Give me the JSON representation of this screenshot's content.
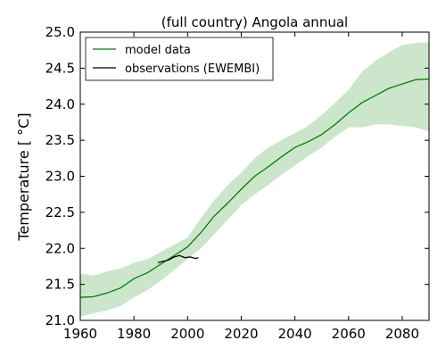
{
  "chart_data": {
    "type": "line",
    "title": "(full country) Angola annual",
    "xlabel": "",
    "ylabel": "Temperature [ °C]",
    "xlim": [
      1960,
      2090
    ],
    "ylim": [
      21.0,
      25.0
    ],
    "x_ticks": [
      1960,
      1980,
      2000,
      2020,
      2040,
      2060,
      2080
    ],
    "y_ticks": [
      21.0,
      21.5,
      22.0,
      22.5,
      23.0,
      23.5,
      24.0,
      24.5,
      25.0
    ],
    "legend_position": "top-left",
    "grid": false,
    "colors": {
      "model": "#008000",
      "band": "#cce6cc",
      "observations": "#000000"
    },
    "series": [
      {
        "name": "model data",
        "x": [
          1960,
          1965,
          1970,
          1975,
          1980,
          1985,
          1990,
          1995,
          2000,
          2005,
          2010,
          2015,
          2020,
          2025,
          2030,
          2035,
          2040,
          2045,
          2050,
          2055,
          2060,
          2065,
          2070,
          2075,
          2080,
          2085,
          2090
        ],
        "values": [
          21.32,
          21.33,
          21.38,
          21.45,
          21.58,
          21.66,
          21.78,
          21.9,
          22.02,
          22.22,
          22.45,
          22.63,
          22.82,
          23.0,
          23.13,
          23.27,
          23.4,
          23.48,
          23.58,
          23.72,
          23.88,
          24.02,
          24.12,
          24.22,
          24.28,
          24.34,
          24.35
        ]
      },
      {
        "name": "observations (EWEMBI)",
        "x": [
          1989,
          1991,
          1993,
          1995,
          1997,
          1999,
          2001,
          2003,
          2004
        ],
        "values": [
          21.8,
          21.82,
          21.84,
          21.88,
          21.9,
          21.87,
          21.88,
          21.86,
          21.87
        ]
      }
    ],
    "band": {
      "x": [
        1960,
        1965,
        1970,
        1975,
        1980,
        1985,
        1990,
        1995,
        2000,
        2005,
        2010,
        2015,
        2020,
        2025,
        2030,
        2035,
        2040,
        2045,
        2050,
        2055,
        2060,
        2065,
        2070,
        2075,
        2080,
        2085,
        2090
      ],
      "upper": [
        21.65,
        21.62,
        21.68,
        21.72,
        21.8,
        21.85,
        21.95,
        22.05,
        22.15,
        22.42,
        22.67,
        22.88,
        23.05,
        23.25,
        23.4,
        23.5,
        23.6,
        23.7,
        23.85,
        24.02,
        24.2,
        24.45,
        24.6,
        24.72,
        24.82,
        24.85,
        24.86
      ],
      "lower": [
        21.05,
        21.1,
        21.14,
        21.2,
        21.32,
        21.42,
        21.55,
        21.7,
        21.85,
        22.0,
        22.2,
        22.4,
        22.6,
        22.75,
        22.88,
        23.02,
        23.15,
        23.28,
        23.4,
        23.55,
        23.68,
        23.68,
        23.72,
        23.72,
        23.7,
        23.68,
        23.62
      ]
    }
  }
}
